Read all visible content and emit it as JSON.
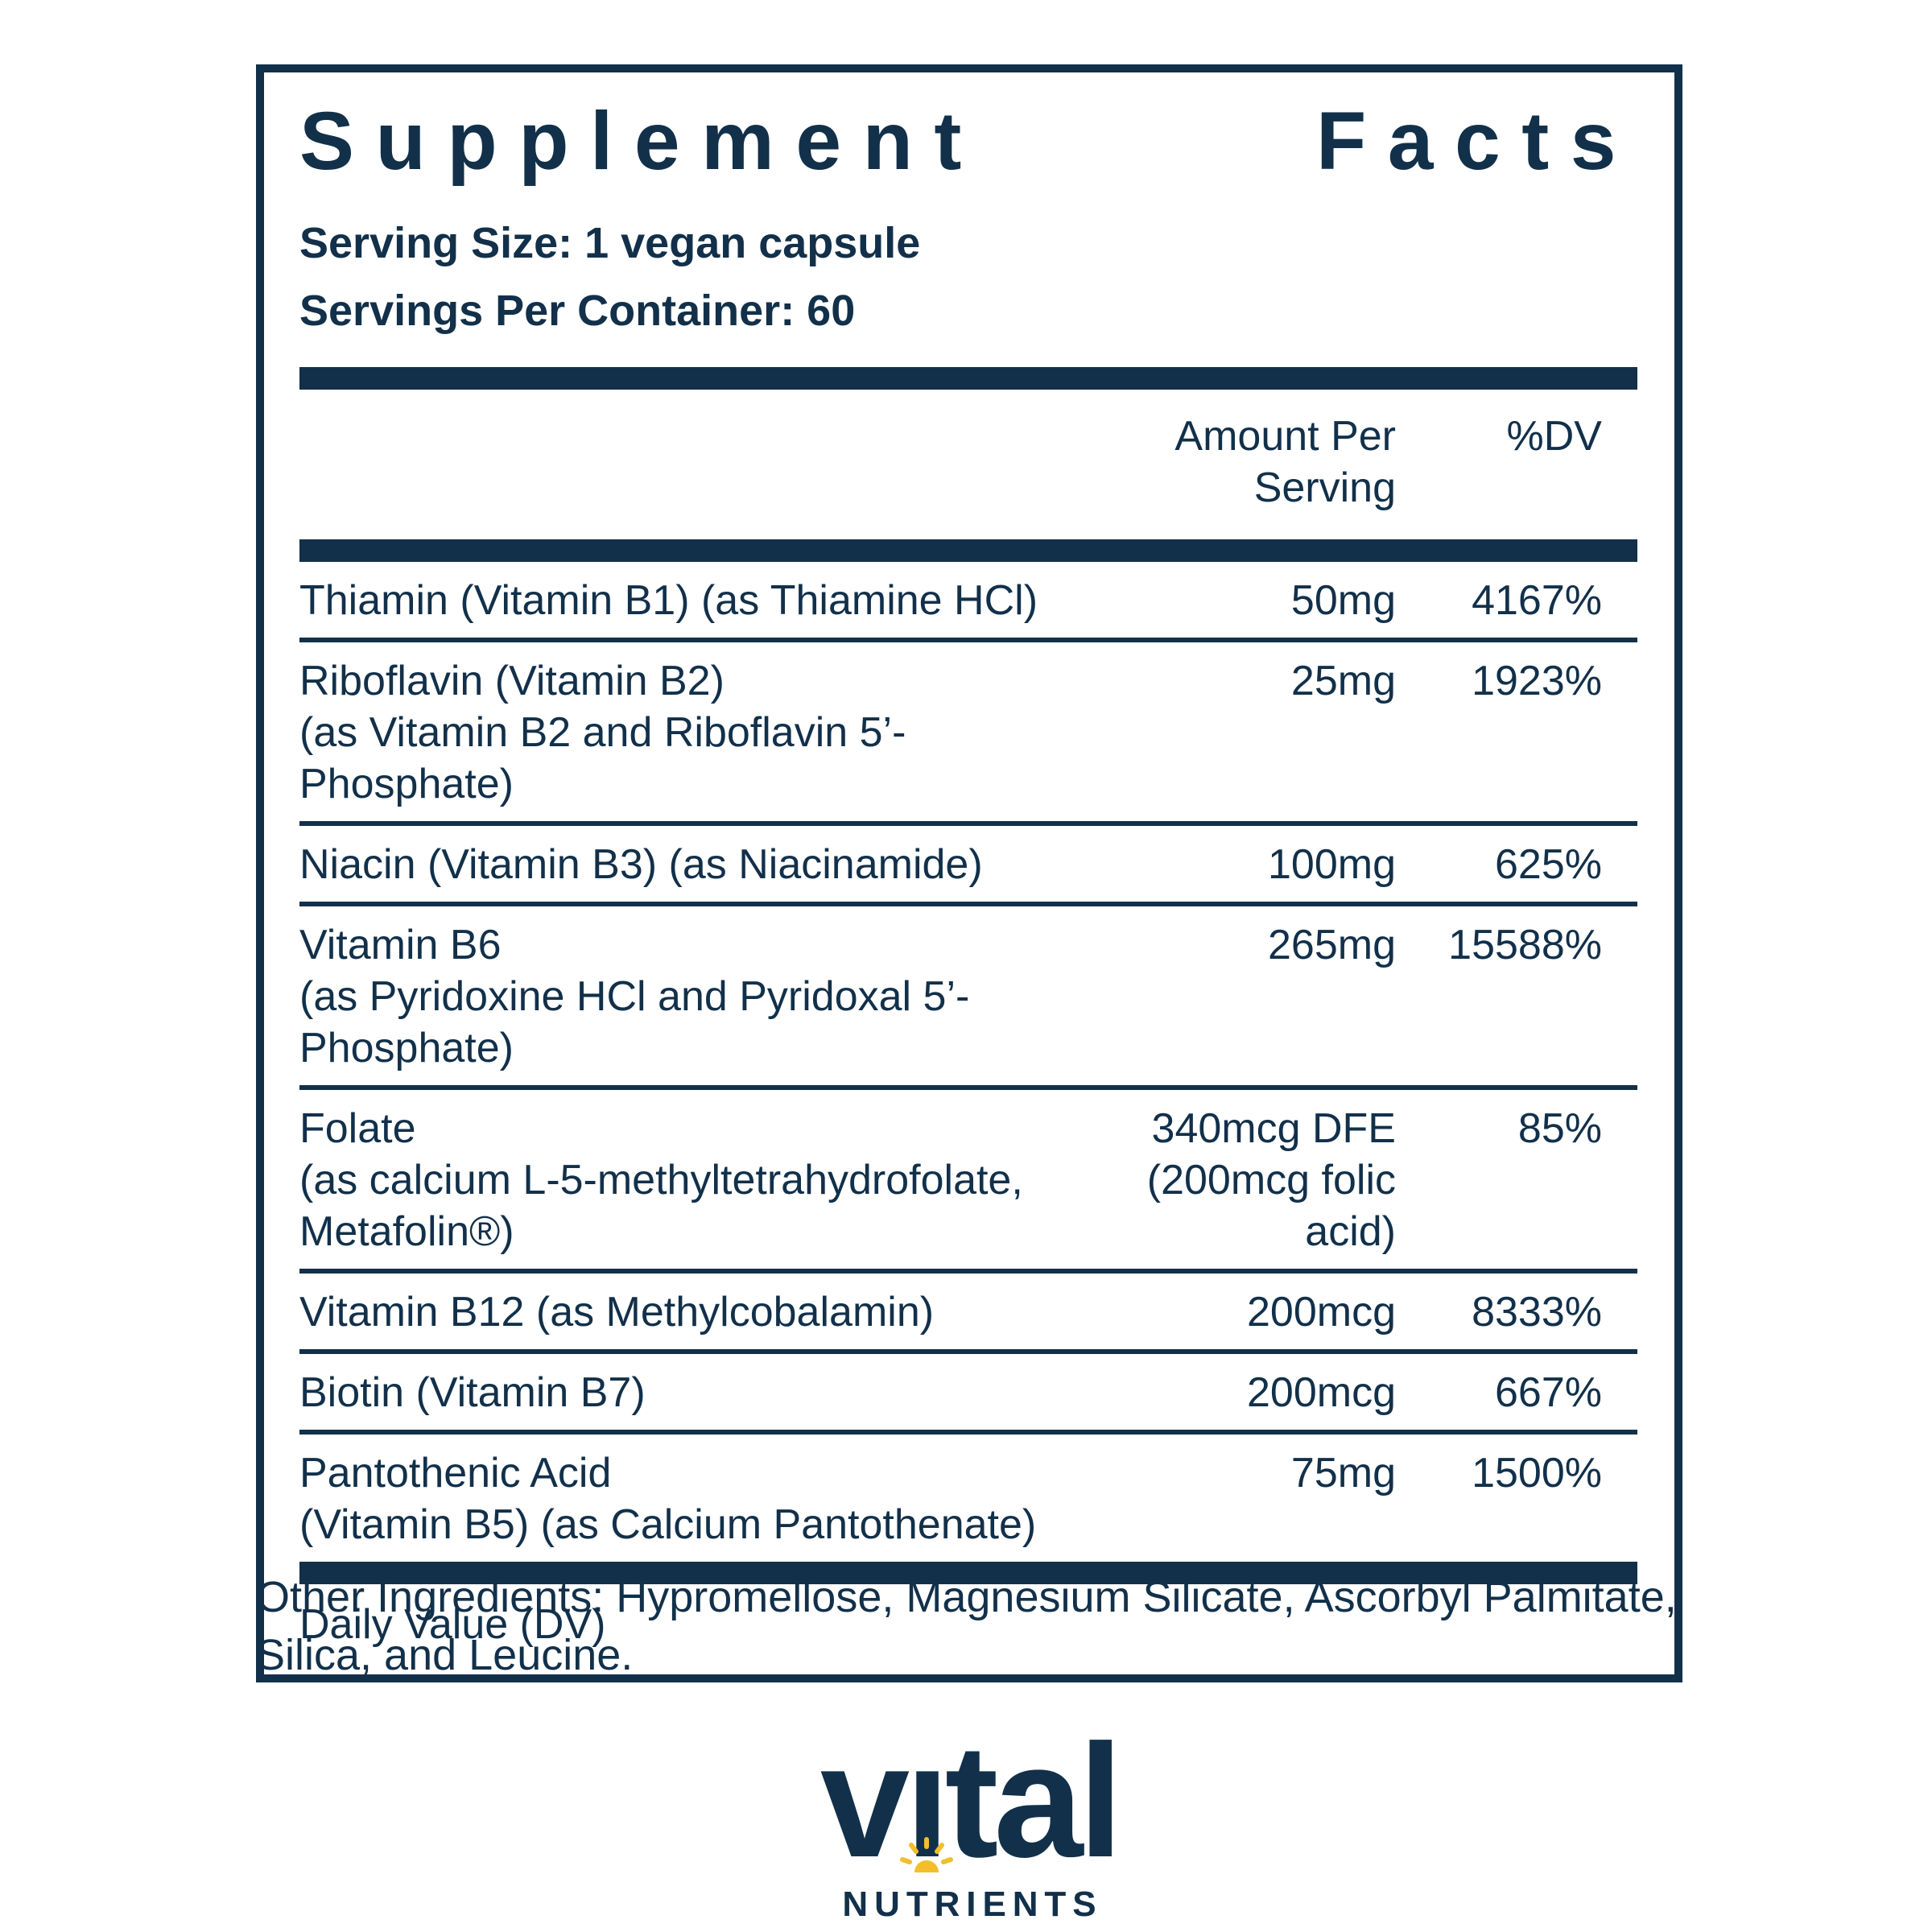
{
  "colors": {
    "navy": "#12304A",
    "gold": "#F2BE2A",
    "background": "#FFFFFF"
  },
  "label": {
    "title": "Supplement Facts",
    "title_words": [
      "Supplement",
      "Facts"
    ],
    "serving_size": "Serving Size: 1 vegan capsule",
    "servings_per_container": "Servings Per Container: 60",
    "columns": {
      "amount": "Amount Per Serving",
      "dv": "%DV"
    },
    "rows": [
      {
        "name": "Thiamin (Vitamin B1) (as Thiamine HCl)",
        "sub_lines": [],
        "amount": "50mg",
        "amount_sub": "",
        "dv": "4167%"
      },
      {
        "name": "Riboflavin (Vitamin B2)",
        "sub_lines": [
          "(as Vitamin B2 and Riboflavin 5’-Phosphate)"
        ],
        "amount": "25mg",
        "amount_sub": "",
        "dv": "1923%"
      },
      {
        "name": "Niacin (Vitamin B3) (as Niacinamide)",
        "sub_lines": [],
        "amount": "100mg",
        "amount_sub": "",
        "dv": "625%"
      },
      {
        "name": "Vitamin B6",
        "sub_lines": [
          "(as Pyridoxine HCl and Pyridoxal 5’-Phosphate)"
        ],
        "amount": "265mg",
        "amount_sub": "",
        "dv": "15588%"
      },
      {
        "name": "Folate",
        "sub_lines": [
          "(as calcium L-5-methyltetrahydrofolate,",
          "Metafolin®)"
        ],
        "amount": "340mcg DFE",
        "amount_sub": "(200mcg folic acid)",
        "dv": "85%"
      },
      {
        "name": "Vitamin B12 (as Methylcobalamin)",
        "sub_lines": [],
        "amount": "200mcg",
        "amount_sub": "",
        "dv": "8333%"
      },
      {
        "name": "Biotin (Vitamin B7)",
        "sub_lines": [],
        "amount": "200mcg",
        "amount_sub": "",
        "dv": "667%"
      },
      {
        "name": "Pantothenic Acid",
        "sub_lines": [
          "(Vitamin B5) (as Calcium Pantothenate)"
        ],
        "amount": "75mg",
        "amount_sub": "",
        "dv": "1500%"
      }
    ],
    "footnote": "Daily Value (DV)"
  },
  "other_ingredients": {
    "lines": [
      "Other Ingredients: Hypromellose, Magnesium Silicate, Ascorbyl Palmitate,",
      "Silica, and Leucine."
    ]
  },
  "brand": {
    "wordmark": "vital",
    "wordmark_pre": "v",
    "wordmark_i": "ı",
    "wordmark_post": "tal",
    "subtext": "NUTRIENTS"
  }
}
